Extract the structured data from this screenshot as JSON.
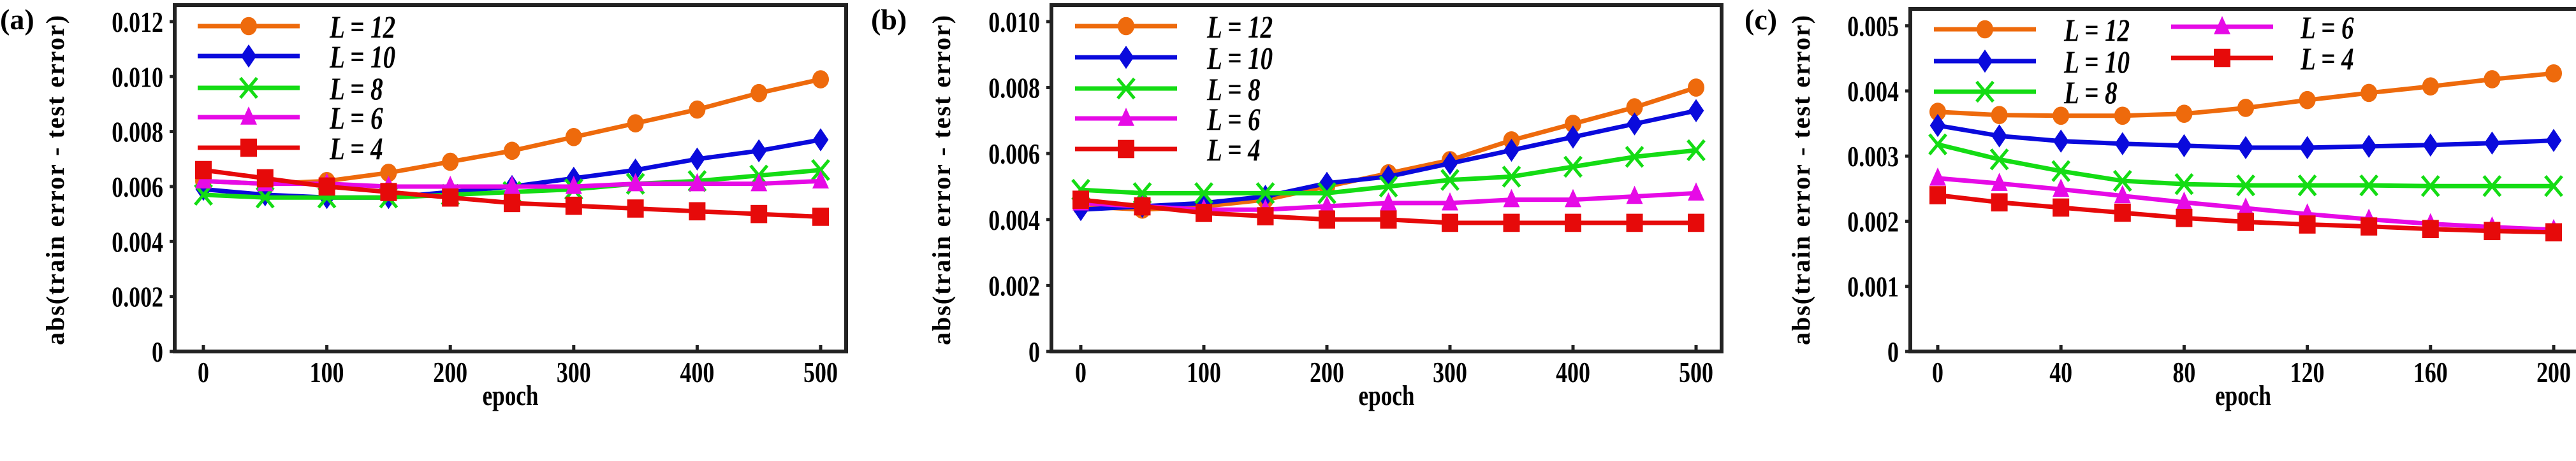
{
  "chart_data": [
    {
      "type": "line",
      "panel_label": "(a)",
      "xlabel": "epoch",
      "ylabel": "abs(train error - test error)",
      "xlim": [
        -20,
        520
      ],
      "ylim": [
        0,
        0.0126
      ],
      "xticks": [
        0,
        100,
        200,
        300,
        400,
        500
      ],
      "xtick_labels": [
        "0",
        "100",
        "200",
        "300",
        "400",
        "500"
      ],
      "yticks": [
        0,
        0.002,
        0.004,
        0.006,
        0.008,
        0.01,
        0.012
      ],
      "ytick_labels": [
        "0",
        "0.002",
        "0.004",
        "0.006",
        "0.008",
        "0.010",
        "0.012"
      ],
      "legend_placement": "top-left",
      "x": [
        0,
        50,
        100,
        150,
        200,
        250,
        300,
        350,
        400,
        450,
        500
      ],
      "series": [
        {
          "name": "L = 12",
          "values": [
            0.0062,
            0.0061,
            0.0062,
            0.0065,
            0.0069,
            0.0073,
            0.0078,
            0.0083,
            0.0088,
            0.0094,
            0.0099
          ]
        },
        {
          "name": "L = 10",
          "values": [
            0.0059,
            0.0057,
            0.0056,
            0.0056,
            0.0058,
            0.006,
            0.0063,
            0.0066,
            0.007,
            0.0073,
            0.0077
          ]
        },
        {
          "name": "L = 8",
          "values": [
            0.0057,
            0.0056,
            0.0056,
            0.0056,
            0.0057,
            0.0058,
            0.0059,
            0.0061,
            0.0062,
            0.0064,
            0.0066
          ]
        },
        {
          "name": "L = 6",
          "values": [
            0.0062,
            0.0061,
            0.0061,
            0.006,
            0.006,
            0.006,
            0.006,
            0.0061,
            0.0061,
            0.0061,
            0.0062
          ]
        },
        {
          "name": "L = 4",
          "values": [
            0.0066,
            0.0063,
            0.006,
            0.0058,
            0.0056,
            0.0054,
            0.0053,
            0.0052,
            0.0051,
            0.005,
            0.0049
          ]
        }
      ]
    },
    {
      "type": "line",
      "panel_label": "(b)",
      "xlabel": "epoch",
      "ylabel": "abs(train error - test error)",
      "xlim": [
        -20,
        520
      ],
      "ylim": [
        0,
        0.0105
      ],
      "xticks": [
        0,
        100,
        200,
        300,
        400,
        500
      ],
      "xtick_labels": [
        "0",
        "100",
        "200",
        "300",
        "400",
        "500"
      ],
      "yticks": [
        0,
        0.002,
        0.004,
        0.006,
        0.008,
        0.01
      ],
      "ytick_labels": [
        "0",
        "0.002",
        "0.004",
        "0.006",
        "0.008",
        "0.010"
      ],
      "legend_placement": "top-left",
      "x": [
        0,
        50,
        100,
        150,
        200,
        250,
        300,
        350,
        400,
        450,
        500
      ],
      "series": [
        {
          "name": "L = 12",
          "values": [
            0.0044,
            0.0043,
            0.0044,
            0.0046,
            0.005,
            0.0054,
            0.0058,
            0.0064,
            0.0069,
            0.0074,
            0.008
          ]
        },
        {
          "name": "L = 10",
          "values": [
            0.0043,
            0.0044,
            0.0045,
            0.0047,
            0.0051,
            0.0053,
            0.0057,
            0.0061,
            0.0065,
            0.0069,
            0.0073
          ]
        },
        {
          "name": "L = 8",
          "values": [
            0.0049,
            0.0048,
            0.0048,
            0.0048,
            0.0048,
            0.005,
            0.0052,
            0.0053,
            0.0056,
            0.0059,
            0.0061
          ]
        },
        {
          "name": "L = 6",
          "values": [
            0.0045,
            0.0044,
            0.0043,
            0.0043,
            0.0044,
            0.0045,
            0.0045,
            0.0046,
            0.0046,
            0.0047,
            0.0048
          ]
        },
        {
          "name": "L = 4",
          "values": [
            0.0046,
            0.0044,
            0.0042,
            0.0041,
            0.004,
            0.004,
            0.0039,
            0.0039,
            0.0039,
            0.0039,
            0.0039
          ]
        }
      ]
    },
    {
      "type": "line",
      "panel_label": "(c)",
      "xlabel": "epoch",
      "ylabel": "abs(train error - test error)",
      "xlim": [
        -8,
        208
      ],
      "ylim": [
        0,
        0.00526
      ],
      "xticks": [
        0,
        40,
        80,
        120,
        160,
        200
      ],
      "xtick_labels": [
        "0",
        "40",
        "80",
        "120",
        "160",
        "200"
      ],
      "yticks": [
        0,
        0.001,
        0.002,
        0.003,
        0.004,
        0.005
      ],
      "ytick_labels": [
        "0",
        "0.001",
        "0.002",
        "0.003",
        "0.004",
        "0.005"
      ],
      "legend_placement": "top-left, two columns",
      "x": [
        0,
        20,
        40,
        60,
        80,
        100,
        120,
        140,
        160,
        180,
        200
      ],
      "series": [
        {
          "name": "L = 12",
          "values": [
            0.00368,
            0.00363,
            0.00362,
            0.00362,
            0.00365,
            0.00374,
            0.00386,
            0.00397,
            0.00407,
            0.00418,
            0.00427
          ]
        },
        {
          "name": "L = 10",
          "values": [
            0.00347,
            0.00331,
            0.00323,
            0.00319,
            0.00316,
            0.00313,
            0.00313,
            0.00315,
            0.00317,
            0.0032,
            0.00324
          ]
        },
        {
          "name": "L = 8",
          "values": [
            0.00318,
            0.00295,
            0.00277,
            0.00262,
            0.00257,
            0.00255,
            0.00255,
            0.00255,
            0.00254,
            0.00254,
            0.00254
          ]
        },
        {
          "name": "L = 6",
          "values": [
            0.00266,
            0.00258,
            0.00249,
            0.00239,
            0.00229,
            0.0022,
            0.00211,
            0.00203,
            0.00196,
            0.00191,
            0.00187
          ]
        },
        {
          "name": "L = 4",
          "values": [
            0.0024,
            0.00229,
            0.00221,
            0.00213,
            0.00205,
            0.00199,
            0.00195,
            0.00192,
            0.00188,
            0.00185,
            0.00183
          ]
        }
      ]
    }
  ],
  "styles": [
    {
      "color": "#ee6a0c",
      "marker": "circle"
    },
    {
      "color": "#0a0adc",
      "marker": "diamond"
    },
    {
      "color": "#14dc14",
      "marker": "x"
    },
    {
      "color": "#e60ae6",
      "marker": "triangle"
    },
    {
      "color": "#e60a0a",
      "marker": "square"
    }
  ]
}
